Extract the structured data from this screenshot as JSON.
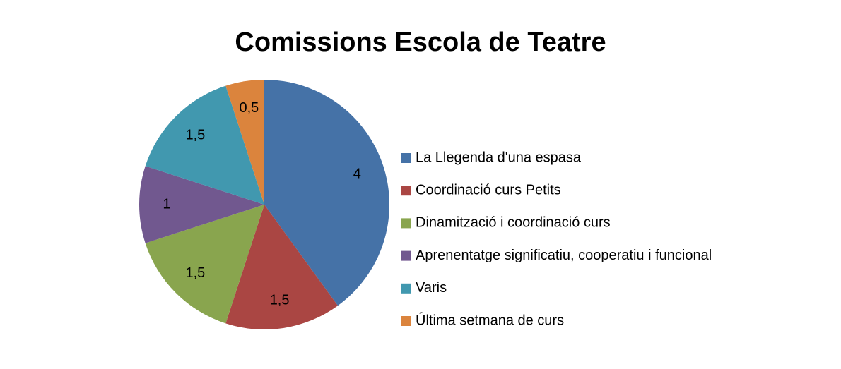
{
  "chart_data": {
    "type": "pie",
    "title": "Comissions Escola de Teatre",
    "categories": [
      "La Llegenda d'una espasa",
      "Coordinació curs Petits",
      "Dinamització i coordinació curs",
      "Aprenentatge significatiu, cooperatiu i funcional",
      "Varis",
      "Última setmana de curs"
    ],
    "values": [
      4,
      1.5,
      1.5,
      1,
      1.5,
      0.5
    ],
    "value_labels": [
      "4",
      "1,5",
      "1,5",
      "1",
      "1,5",
      "0,5"
    ],
    "colors": [
      "#4572a7",
      "#aa4643",
      "#89a54e",
      "#71588f",
      "#4198af",
      "#db843d"
    ],
    "legend": "right"
  }
}
